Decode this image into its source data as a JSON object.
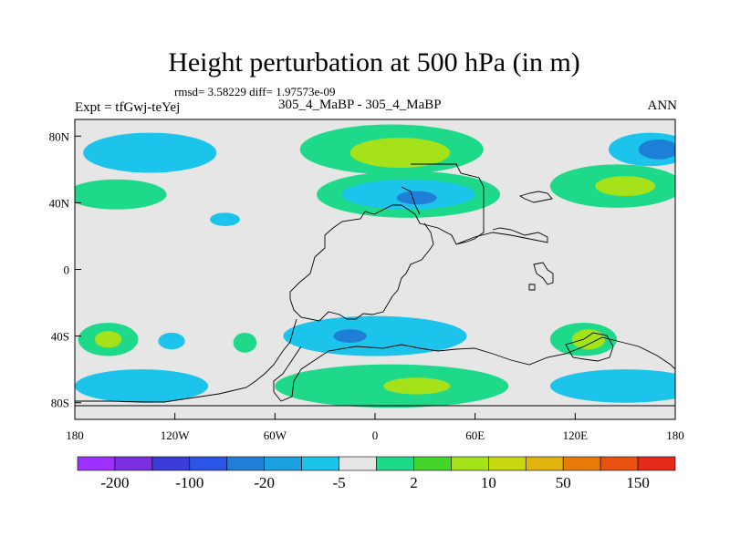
{
  "header": {
    "title": "Height perturbation at 500 hPa (in m)",
    "stats": "rmsd= 3.58229 diff= 1.97573e-09",
    "experiment": "Expt = tfGwj-teYej",
    "cases": "305_4_MaBP - 305_4_MaBP",
    "season": "ANN"
  },
  "chart_data": {
    "type": "heatmap",
    "title": "Height perturbation at 500 hPa (in m)",
    "subtitle": "305_4_MaBP - 305_4_MaBP",
    "xlabel": "",
    "ylabel": "",
    "xlim": [
      -180,
      180
    ],
    "ylim": [
      -90,
      90
    ],
    "x_ticks": [
      -180,
      -120,
      -60,
      0,
      60,
      120,
      180
    ],
    "x_tick_labels": [
      "180",
      "120W",
      "60W",
      "0",
      "60E",
      "120E",
      "180"
    ],
    "y_ticks": [
      80,
      40,
      0,
      -40,
      -80
    ],
    "y_tick_labels": [
      "80N",
      "40N",
      "0",
      "40S",
      "80S"
    ],
    "colorbar": {
      "colors": [
        "#9b30ff",
        "#7b2fe0",
        "#3b3bd8",
        "#2a55e6",
        "#1f7fd7",
        "#1aa0e0",
        "#1cc3ea",
        "#e6e6e6",
        "#1fd98a",
        "#44d52a",
        "#a6e21a",
        "#c8d810",
        "#e0b40c",
        "#e87a0a",
        "#e8520e",
        "#e62a1a"
      ],
      "labels": [
        "-200",
        "-100",
        "-20",
        "-5",
        "2",
        "10",
        "50",
        "150"
      ]
    },
    "features": [
      {
        "level": -20,
        "lon": -150,
        "lat": 70,
        "rx": 22,
        "ry": 7
      },
      {
        "level": -5,
        "lon": -135,
        "lat": 70,
        "rx": 40,
        "ry": 12
      },
      {
        "level": 2,
        "lon": -155,
        "lat": 45,
        "rx": 30,
        "ry": 9
      },
      {
        "level": -5,
        "lon": -90,
        "lat": 30,
        "rx": 9,
        "ry": 4
      },
      {
        "level": 2,
        "lon": 10,
        "lat": 72,
        "rx": 55,
        "ry": 15
      },
      {
        "level": 10,
        "lon": 15,
        "lat": 70,
        "rx": 30,
        "ry": 9
      },
      {
        "level": 2,
        "lon": 20,
        "lat": 45,
        "rx": 55,
        "ry": 14
      },
      {
        "level": -5,
        "lon": 20,
        "lat": 45,
        "rx": 40,
        "ry": 9
      },
      {
        "level": -20,
        "lon": 25,
        "lat": 43,
        "rx": 12,
        "ry": 4
      },
      {
        "level": 2,
        "lon": 145,
        "lat": 50,
        "rx": 40,
        "ry": 13
      },
      {
        "level": 10,
        "lon": 150,
        "lat": 50,
        "rx": 18,
        "ry": 6
      },
      {
        "level": -5,
        "lon": 165,
        "lat": 72,
        "rx": 25,
        "ry": 10
      },
      {
        "level": -20,
        "lon": 170,
        "lat": 72,
        "rx": 12,
        "ry": 6
      },
      {
        "level": 2,
        "lon": -160,
        "lat": -42,
        "rx": 18,
        "ry": 10
      },
      {
        "level": 10,
        "lon": -160,
        "lat": -42,
        "rx": 8,
        "ry": 5
      },
      {
        "level": -5,
        "lon": -122,
        "lat": -43,
        "rx": 8,
        "ry": 5
      },
      {
        "level": 2,
        "lon": -78,
        "lat": -44,
        "rx": 7,
        "ry": 6
      },
      {
        "level": 2,
        "lon": 125,
        "lat": -42,
        "rx": 20,
        "ry": 10
      },
      {
        "level": 10,
        "lon": 128,
        "lat": -42,
        "rx": 10,
        "ry": 6
      },
      {
        "level": -5,
        "lon": 0,
        "lat": -40,
        "rx": 55,
        "ry": 12
      },
      {
        "level": -20,
        "lon": -15,
        "lat": -40,
        "rx": 10,
        "ry": 4
      },
      {
        "level": 2,
        "lon": 10,
        "lat": -70,
        "rx": 70,
        "ry": 13
      },
      {
        "level": 10,
        "lon": 25,
        "lat": -70,
        "rx": 20,
        "ry": 5
      },
      {
        "level": -5,
        "lon": -140,
        "lat": -70,
        "rx": 40,
        "ry": 10
      },
      {
        "level": -5,
        "lon": 150,
        "lat": -70,
        "rx": 45,
        "ry": 10
      }
    ]
  }
}
